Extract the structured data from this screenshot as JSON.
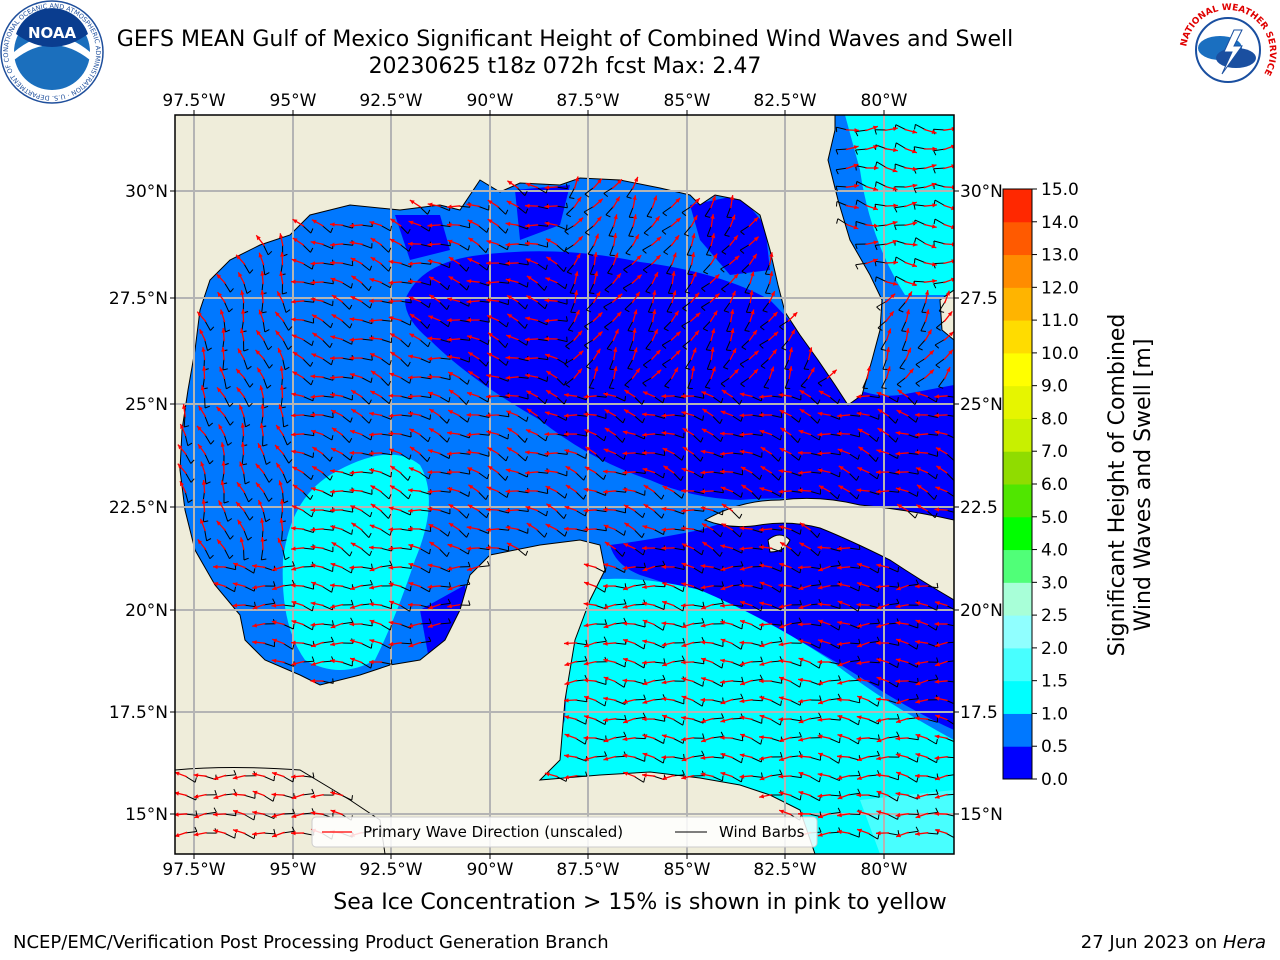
{
  "title_line1": "GEFS MEAN Gulf of Mexico Significant Height of Combined Wind Waves and Swell",
  "title_line2": "20230625 t18z 072h fcst   Max: 2.47",
  "map": {
    "lon_labels": [
      "97.5°W",
      "95°W",
      "92.5°W",
      "90°W",
      "87.5°W",
      "85°W",
      "82.5°W",
      "80°W"
    ],
    "lat_labels": [
      "30°N",
      "27.5°N",
      "25°N",
      "22.5°N",
      "20°N",
      "17.5°N",
      "15°N"
    ],
    "lat_labels_right": [
      "30°N",
      "27.5",
      "25°N",
      "22.5",
      "20°N",
      "17.5",
      "15°N"
    ],
    "legend": {
      "primary_wave": "Primary Wave Direction (unscaled)",
      "wind_barbs": "Wind Barbs"
    },
    "colors": {
      "land": "#efedda",
      "grid": "#b4b4b4",
      "arrow": "#ff0000",
      "barb": "#000000"
    }
  },
  "colorbar": {
    "label_line1": "Significant Height of Combined",
    "label_line2": "Wind Waves and Swell [m]",
    "ticks": [
      "0.0",
      "0.5",
      "1.0",
      "1.5",
      "2.0",
      "2.5",
      "3.0",
      "4.0",
      "5.0",
      "6.0",
      "7.0",
      "8.0",
      "9.0",
      "10.0",
      "11.0",
      "12.0",
      "13.0",
      "14.0",
      "15.0"
    ],
    "colors": [
      "#0000ff",
      "#0078ff",
      "#00ffff",
      "#48ffff",
      "#90ffff",
      "#a8ffd8",
      "#50ff78",
      "#00ff00",
      "#50e600",
      "#90dc00",
      "#c8f000",
      "#e6f500",
      "#ffff00",
      "#ffdc00",
      "#ffb400",
      "#ff8c00",
      "#ff5a00",
      "#ff2800"
    ]
  },
  "ice_note": "Sea Ice Concentration > 15% is shown in pink to yellow",
  "footer": {
    "left": "NCEP/EMC/Verification Post Processing Product Generation Branch",
    "date": "27 Jun 2023 on ",
    "host": "Hera"
  },
  "logos": {
    "noaa_text": "NOAA",
    "noaa_ring": "NATIONAL OCEANIC AND ATMOSPHERIC ADMINISTRATION · U.S. DEPARTMENT OF COMMERCE",
    "nws_ring": "NATIONAL WEATHER SERVICE"
  }
}
